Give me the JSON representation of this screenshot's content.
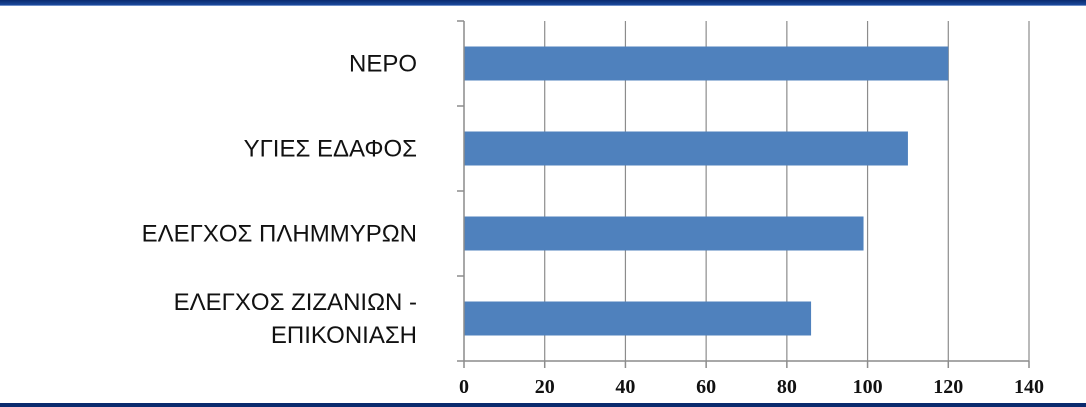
{
  "chart_data": {
    "type": "bar",
    "orientation": "horizontal",
    "categories": [
      [
        "ΝΕΡΟ"
      ],
      [
        "ΥΓΙΕΣ ΕΔΑΦΟΣ"
      ],
      [
        "ΕΛΕΓΧΟΣ ΠΛΗΜΜΥΡΩΝ"
      ],
      [
        "ΕΛΕΓΧΟΣ ΖΙΖΑΝΙΩΝ -",
        "ΕΠΙΚΟΝΙΑΣΗ"
      ]
    ],
    "values": [
      120,
      110,
      99,
      86
    ],
    "xlim": [
      0,
      140
    ],
    "xticks": [
      "0",
      "20",
      "40",
      "60",
      "80",
      "100",
      "120",
      "140"
    ],
    "grid": "vertical",
    "legend": "none",
    "bar_color": "#4f81bd",
    "grid_color": "#8c8c8c"
  }
}
